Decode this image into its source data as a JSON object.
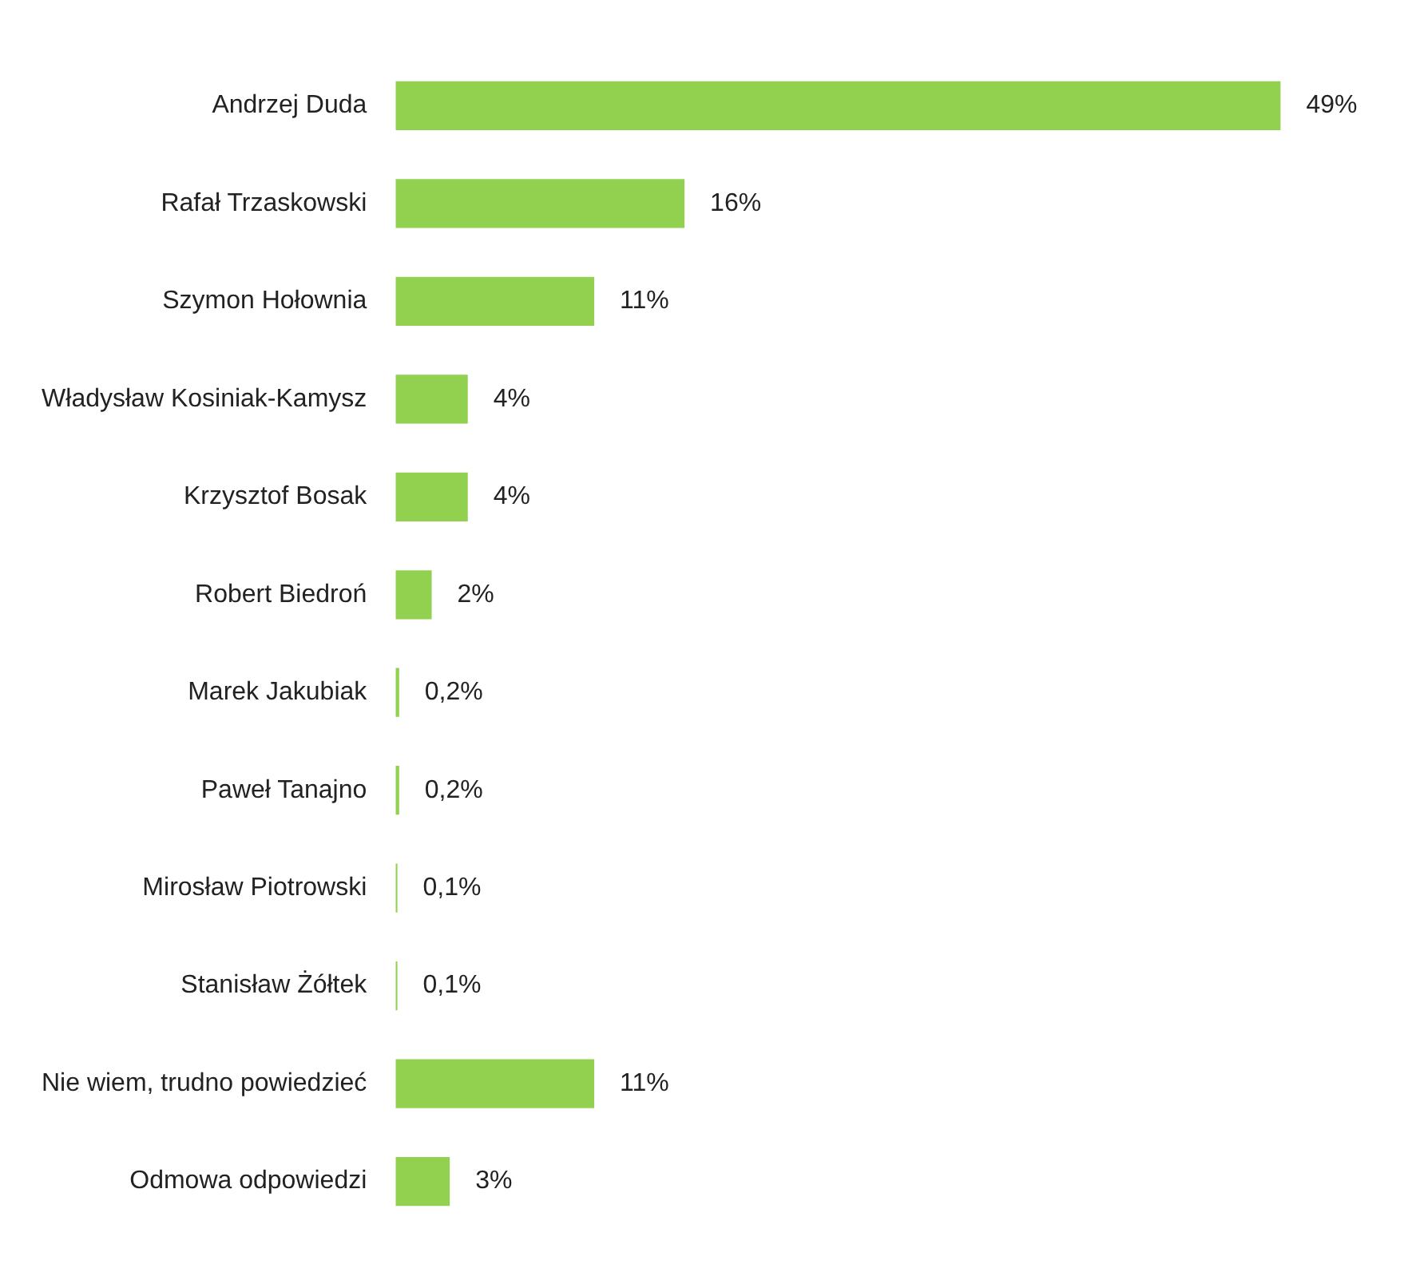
{
  "chart_data": {
    "type": "bar",
    "orientation": "horizontal",
    "categories": [
      "Andrzej Duda",
      "Rafał Trzaskowski",
      "Szymon Hołownia",
      "Władysław Kosiniak-Kamysz",
      "Krzysztof Bosak",
      "Robert Biedroń",
      "Marek Jakubiak",
      "Paweł Tanajno",
      "Mirosław Piotrowski",
      "Stanisław Żółtek",
      "Nie wiem, trudno powiedzieć",
      "Odmowa odpowiedzi"
    ],
    "values": [
      49,
      16,
      11,
      4,
      4,
      2,
      0.2,
      0.2,
      0.1,
      0.1,
      11,
      3
    ],
    "value_labels": [
      "49%",
      "16%",
      "11%",
      "4%",
      "4%",
      "2%",
      "0,2%",
      "0,2%",
      "0,1%",
      "0,1%",
      "11%",
      "3%"
    ],
    "color": "#92d050",
    "legend": false
  }
}
